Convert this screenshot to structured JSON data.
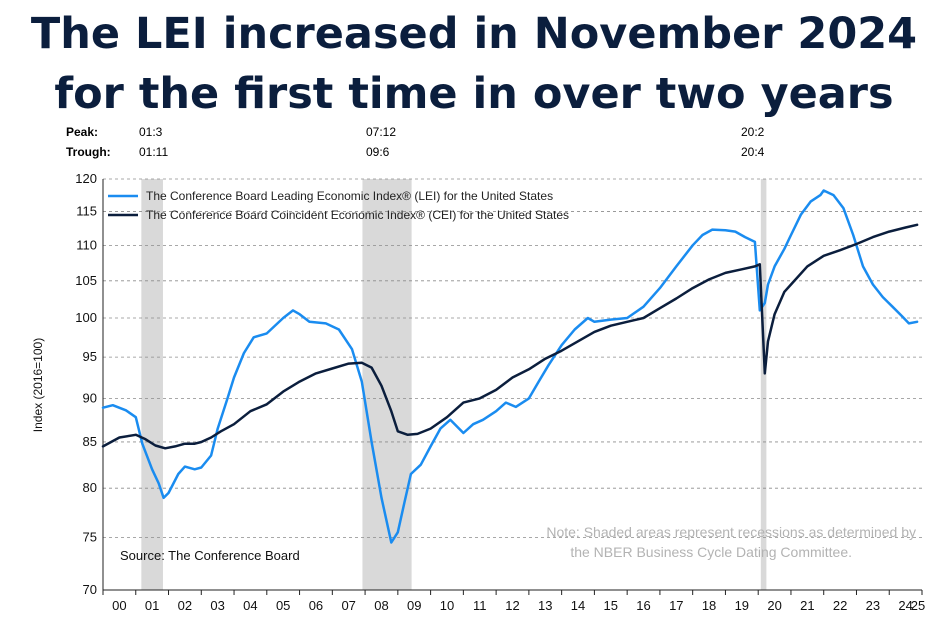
{
  "header": {
    "title_line1": "The LEI increased in November 2024",
    "title_line2": "for the first time in over two years"
  },
  "cycle_dates": {
    "peak_label": "Peak:",
    "trough_label": "Trough:",
    "peaks": [
      "01:3",
      "07:12",
      "20:2"
    ],
    "troughs": [
      "01:11",
      "09:6",
      "20:4"
    ]
  },
  "annotations": {
    "source": "Source: The Conference Board",
    "note_line1": "Note: Shaded areas represent recessions as determined by",
    "note_line2": "the NBER Business Cycle Dating Committee."
  },
  "colors": {
    "lei": "#1a8cf0",
    "cei": "#0b1e3d",
    "recession": "#d9d9d9",
    "title": "#0b1e3d"
  },
  "chart_data": {
    "type": "line",
    "title": "",
    "xlabel": "",
    "ylabel": "Index (2016=100)",
    "xlim": [
      2000,
      2025
    ],
    "ylim": [
      70,
      120
    ],
    "y_scale": "log",
    "y_ticks": [
      70,
      75,
      80,
      85,
      90,
      95,
      100,
      105,
      110,
      115,
      120
    ],
    "x_ticks": [
      {
        "v": 2000.5,
        "label": "00"
      },
      {
        "v": 2001.5,
        "label": "01"
      },
      {
        "v": 2002.5,
        "label": "02"
      },
      {
        "v": 2003.5,
        "label": "03"
      },
      {
        "v": 2004.5,
        "label": "04"
      },
      {
        "v": 2005.5,
        "label": "05"
      },
      {
        "v": 2006.5,
        "label": "06"
      },
      {
        "v": 2007.5,
        "label": "07"
      },
      {
        "v": 2008.5,
        "label": "08"
      },
      {
        "v": 2009.5,
        "label": "09"
      },
      {
        "v": 2010.5,
        "label": "10"
      },
      {
        "v": 2011.5,
        "label": "11"
      },
      {
        "v": 2012.5,
        "label": "12"
      },
      {
        "v": 2013.5,
        "label": "13"
      },
      {
        "v": 2014.5,
        "label": "14"
      },
      {
        "v": 2015.5,
        "label": "15"
      },
      {
        "v": 2016.5,
        "label": "16"
      },
      {
        "v": 2017.5,
        "label": "17"
      },
      {
        "v": 2018.5,
        "label": "18"
      },
      {
        "v": 2019.5,
        "label": "19"
      },
      {
        "v": 2020.5,
        "label": "20"
      },
      {
        "v": 2021.5,
        "label": "21"
      },
      {
        "v": 2022.5,
        "label": "22"
      },
      {
        "v": 2023.5,
        "label": "23"
      },
      {
        "v": 2024.5,
        "label": "24"
      },
      {
        "v": 2025.5,
        "label": "25"
      }
    ],
    "recessions": [
      [
        2001.17,
        2001.83
      ],
      [
        2007.92,
        2009.42
      ],
      [
        2020.08,
        2020.25
      ]
    ],
    "series": [
      {
        "name": "The Conference Board Leading Economic Index® (LEI) for the United States",
        "x": [
          2000.0,
          2000.3,
          2000.7,
          2001.0,
          2001.2,
          2001.5,
          2001.7,
          2001.85,
          2002.0,
          2002.3,
          2002.5,
          2002.8,
          2003.0,
          2003.3,
          2003.5,
          2003.8,
          2004.0,
          2004.3,
          2004.6,
          2005.0,
          2005.5,
          2005.8,
          2006.0,
          2006.3,
          2006.8,
          2007.2,
          2007.6,
          2007.9,
          2008.2,
          2008.5,
          2008.8,
          2009.0,
          2009.2,
          2009.4,
          2009.7,
          2010.0,
          2010.3,
          2010.6,
          2011.0,
          2011.3,
          2011.6,
          2012.0,
          2012.3,
          2012.6,
          2013.0,
          2013.3,
          2013.6,
          2014.0,
          2014.4,
          2014.8,
          2015.0,
          2015.5,
          2016.0,
          2016.5,
          2017.0,
          2017.5,
          2018.0,
          2018.3,
          2018.6,
          2019.0,
          2019.3,
          2019.6,
          2019.9,
          2020.05,
          2020.2,
          2020.3,
          2020.5,
          2020.8,
          2021.0,
          2021.3,
          2021.6,
          2021.9,
          2022.0,
          2022.3,
          2022.6,
          2022.9,
          2023.2,
          2023.5,
          2023.8,
          2024.1,
          2024.4,
          2024.6,
          2024.85
        ],
        "values": [
          88.9,
          89.2,
          88.6,
          87.8,
          84.8,
          82.0,
          80.5,
          79.0,
          79.5,
          81.5,
          82.3,
          82.0,
          82.2,
          83.5,
          86.5,
          90.0,
          92.5,
          95.5,
          97.5,
          98.0,
          100.0,
          101.0,
          100.5,
          99.5,
          99.3,
          98.5,
          96.0,
          92.0,
          85.0,
          79.0,
          74.5,
          75.5,
          78.5,
          81.5,
          82.5,
          84.5,
          86.5,
          87.5,
          86.0,
          87.0,
          87.5,
          88.5,
          89.5,
          89.0,
          90.0,
          92.0,
          94.0,
          96.5,
          98.5,
          100.0,
          99.5,
          99.8,
          100.0,
          101.5,
          104.0,
          107.0,
          110.0,
          111.5,
          112.3,
          112.2,
          112.0,
          111.2,
          110.5,
          101.0,
          102.0,
          104.5,
          107.0,
          109.5,
          111.5,
          114.5,
          116.5,
          117.5,
          118.2,
          117.5,
          115.5,
          111.5,
          107.0,
          104.5,
          102.8,
          101.5,
          100.2,
          99.3,
          99.5
        ]
      },
      {
        "name": "The Conference Board Coincident Economic Index® (CEI) for the United States",
        "x": [
          2000.0,
          2000.5,
          2001.0,
          2001.3,
          2001.6,
          2001.9,
          2002.2,
          2002.5,
          2002.8,
          2003.0,
          2003.3,
          2003.6,
          2004.0,
          2004.5,
          2005.0,
          2005.5,
          2006.0,
          2006.5,
          2007.0,
          2007.5,
          2007.9,
          2008.2,
          2008.5,
          2008.8,
          2009.0,
          2009.3,
          2009.6,
          2010.0,
          2010.5,
          2011.0,
          2011.5,
          2012.0,
          2012.5,
          2013.0,
          2013.5,
          2014.0,
          2014.5,
          2015.0,
          2015.5,
          2016.0,
          2016.5,
          2017.0,
          2017.5,
          2018.0,
          2018.5,
          2019.0,
          2019.5,
          2019.9,
          2020.05,
          2020.2,
          2020.3,
          2020.5,
          2020.8,
          2021.0,
          2021.5,
          2022.0,
          2022.5,
          2023.0,
          2023.5,
          2024.0,
          2024.5,
          2024.85
        ],
        "values": [
          84.5,
          85.5,
          85.8,
          85.3,
          84.6,
          84.3,
          84.5,
          84.8,
          84.8,
          85.0,
          85.5,
          86.2,
          87.0,
          88.5,
          89.3,
          90.8,
          92.0,
          93.0,
          93.6,
          94.2,
          94.3,
          93.7,
          91.5,
          88.5,
          86.2,
          85.8,
          85.9,
          86.5,
          87.8,
          89.5,
          90.0,
          91.0,
          92.5,
          93.5,
          94.8,
          95.8,
          97.0,
          98.2,
          99.0,
          99.5,
          100.0,
          101.3,
          102.6,
          104.0,
          105.2,
          106.1,
          106.6,
          107.0,
          107.3,
          93.0,
          97.0,
          100.5,
          103.5,
          104.5,
          107.0,
          108.5,
          109.3,
          110.2,
          111.2,
          112.0,
          112.6,
          113.0
        ]
      }
    ]
  }
}
